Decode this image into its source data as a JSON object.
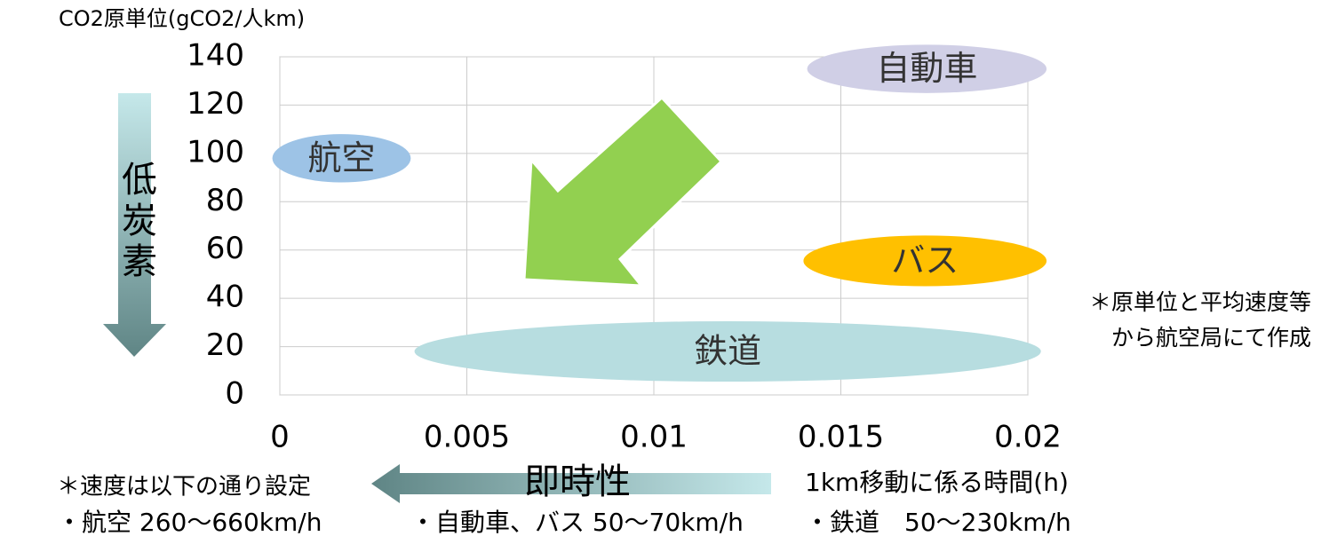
{
  "chart_data": {
    "type": "region",
    "title": "CO2原単位(gCO2/人km)",
    "xlabel": "1km移動に係る時間(h)",
    "xlim": [
      0,
      0.02
    ],
    "xticks": [
      0,
      0.005,
      0.01,
      0.015,
      0.02
    ],
    "ylim": [
      0,
      140
    ],
    "yticks": [
      0,
      20,
      40,
      60,
      80,
      100,
      120,
      140
    ],
    "grid": true,
    "series": [
      {
        "name": "航空",
        "color": "#9dc3e6",
        "x": [
          -0.0002,
          0.0035
        ],
        "y": [
          88,
          108
        ]
      },
      {
        "name": "自動車",
        "color": "#d0cfe6",
        "x": [
          0.0141,
          0.0205
        ],
        "y": [
          125,
          145
        ]
      },
      {
        "name": "バス",
        "color": "#ffc000",
        "x": [
          0.014,
          0.0205
        ],
        "y": [
          45,
          66
        ]
      },
      {
        "name": "鉄道",
        "color": "#b7dde0",
        "x": [
          0.0036,
          0.02035
        ],
        "y": [
          5.5,
          30.5
        ]
      }
    ],
    "annotations": {
      "y_direction": "低炭素",
      "x_direction": "即時性",
      "source_note": [
        "＊原単位と平均速度等",
        "から航空局にて作成"
      ],
      "speed_note": "＊速度は以下の通り設定",
      "speed_air": "・航空 260～660km/h",
      "speed_car": "・自動車、バス 50～70km/h",
      "speed_rail": "・鉄道　50～230km/h"
    }
  }
}
